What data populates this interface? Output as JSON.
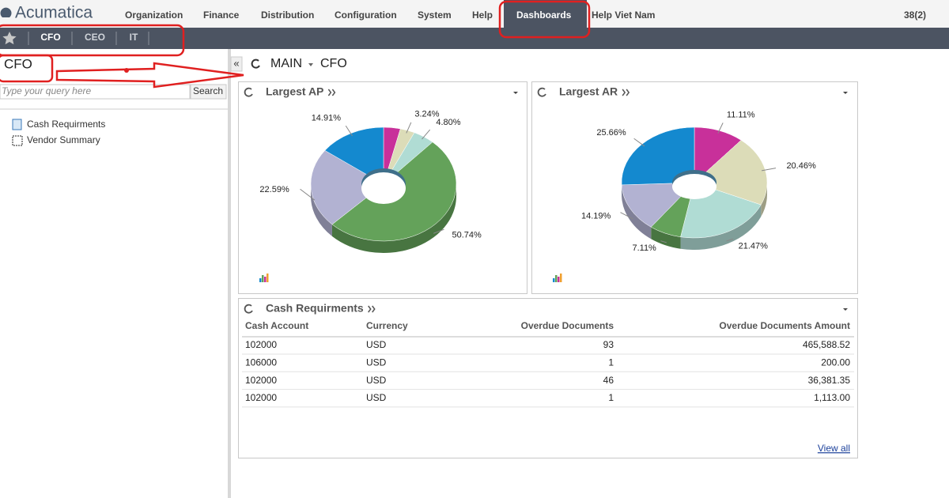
{
  "nav": {
    "logo": "Acumatica",
    "menu": [
      "Organization",
      "Finance",
      "Distribution",
      "Configuration",
      "System",
      "Help",
      "Dashboards",
      "Help Viet Nam"
    ],
    "counter": "38(2)"
  },
  "tabs": [
    "CFO",
    "CEO",
    "IT"
  ],
  "sidebar": {
    "title": "CFO",
    "search_placeholder": "Type your query here",
    "search_button": "Search",
    "items": [
      "Cash Requirments",
      "Vendor Summary"
    ]
  },
  "breadcrumb": {
    "root": "MAIN",
    "page": "CFO"
  },
  "chart_data": [
    {
      "type": "pie",
      "title": "Largest AP",
      "values": [
        3.72,
        3.24,
        4.8,
        50.74,
        22.59,
        14.91
      ],
      "value_labels": [
        null,
        "3.24%",
        "4.80%",
        "50.74%",
        "22.59%",
        "14.91%"
      ],
      "colors": [
        "#c8309a",
        "#dcdcb8",
        "#b0dcd4",
        "#64a25a",
        "#b2b2d2",
        "#1489cf"
      ]
    },
    {
      "type": "pie",
      "title": "Largest AR",
      "values": [
        11.11,
        20.46,
        21.47,
        7.11,
        14.19,
        25.66
      ],
      "value_labels": [
        "11.11%",
        "20.46%",
        "21.47%",
        "7.11%",
        "14.19%",
        "25.66%"
      ],
      "colors": [
        "#c8309a",
        "#dcdcb8",
        "#b0dcd4",
        "#64a25a",
        "#b2b2d2",
        "#1489cf"
      ]
    }
  ],
  "table": {
    "title": "Cash Requirments",
    "columns": [
      "Cash Account",
      "Currency",
      "Overdue Documents",
      "Overdue Documents Amount"
    ],
    "rows": [
      [
        "102000",
        "USD",
        "93",
        "465,588.52"
      ],
      [
        "106000",
        "USD",
        "1",
        "200.00"
      ],
      [
        "102000",
        "USD",
        "46",
        "36,381.35"
      ],
      [
        "102000",
        "USD",
        "1",
        "1,113.00"
      ]
    ],
    "link": "View all"
  }
}
